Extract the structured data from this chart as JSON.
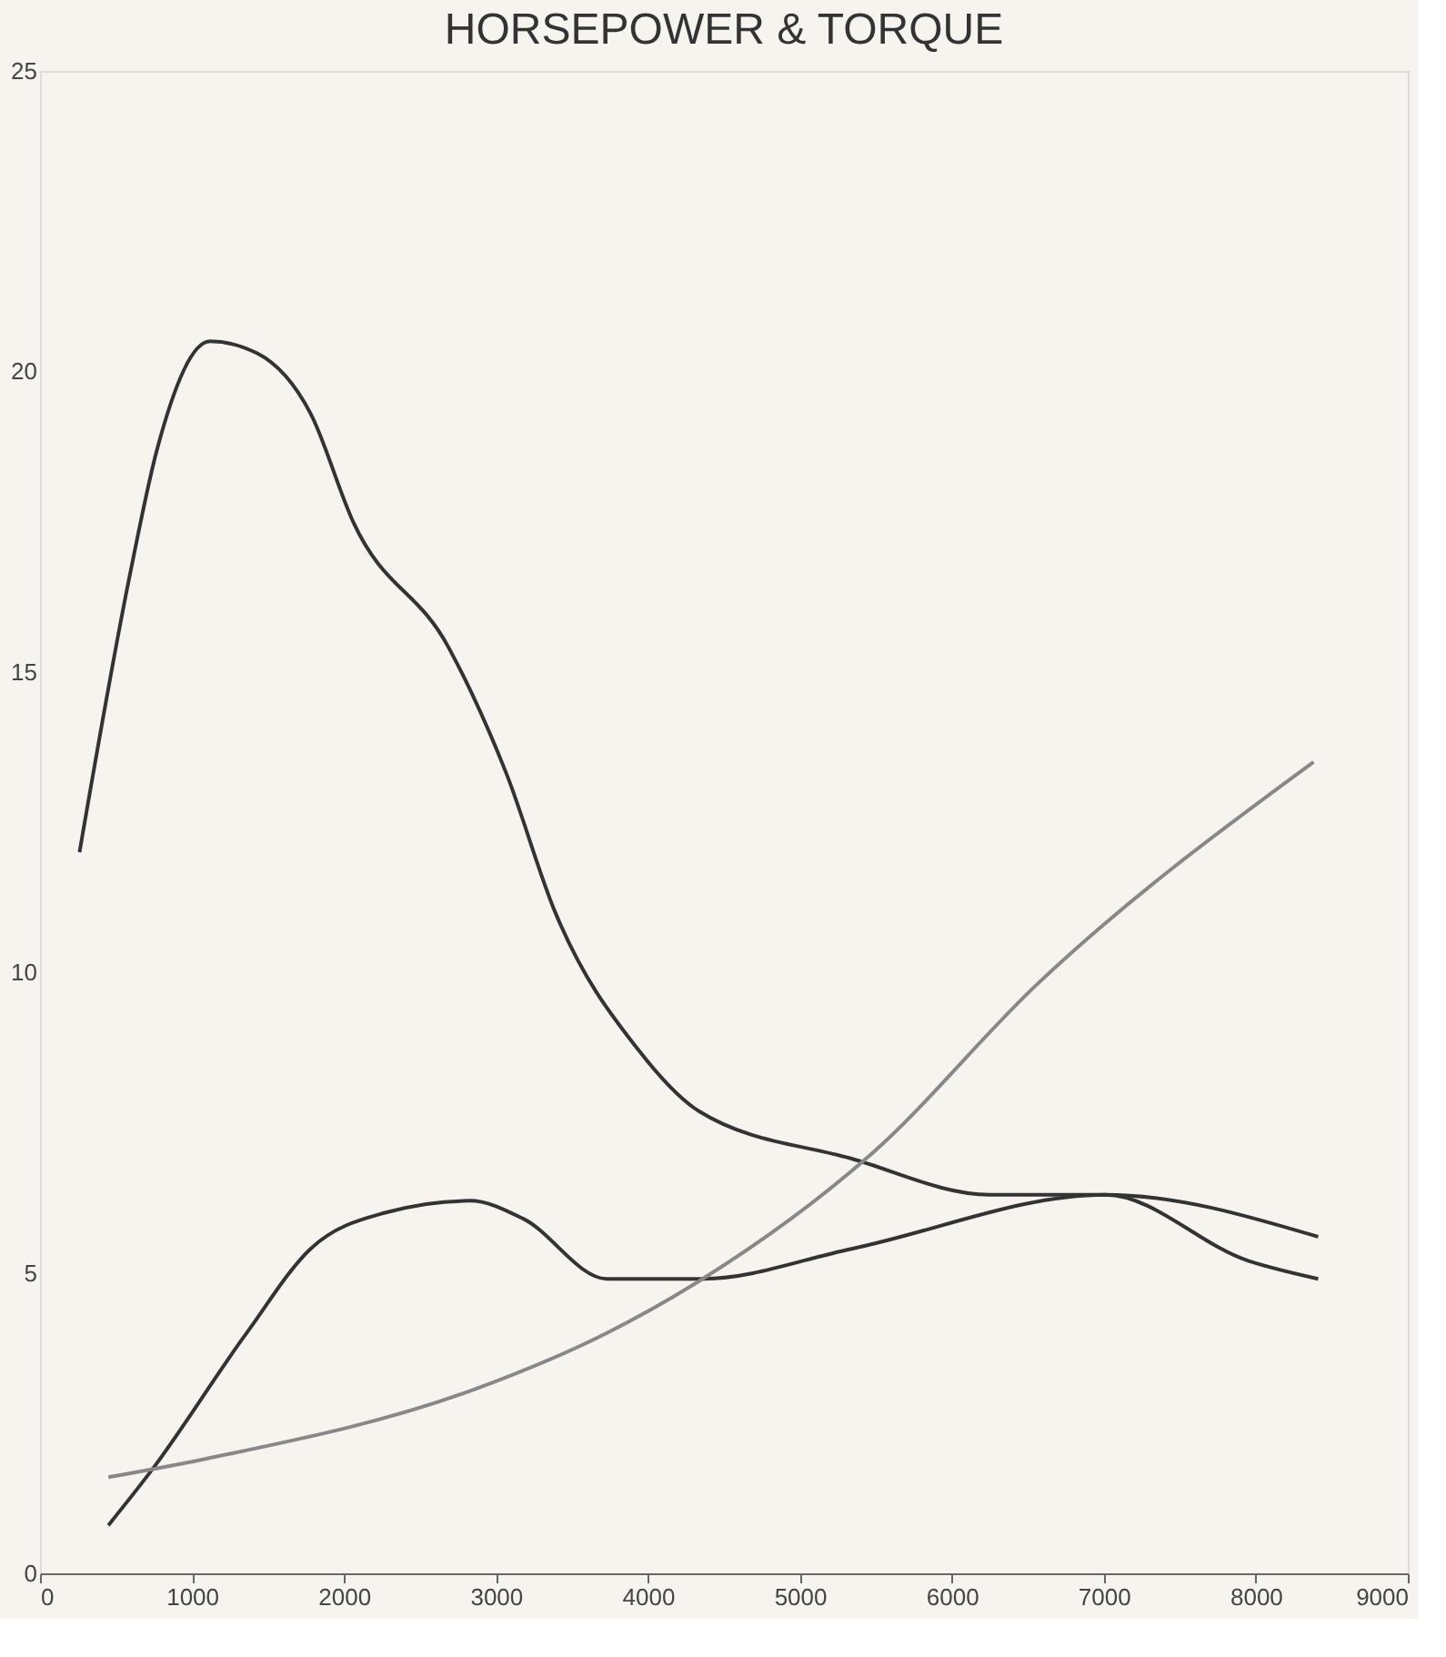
{
  "chart_data": {
    "type": "line",
    "title": "HORSEPOWER & TORQUE",
    "xlim": [
      0,
      9000
    ],
    "xticks": [
      0,
      1000,
      2000,
      3000,
      4000,
      5000,
      6000,
      7000,
      8000,
      9000
    ],
    "ylim": [
      0,
      25
    ],
    "yticks": [
      0,
      5,
      10,
      15,
      20,
      25
    ],
    "grid": false,
    "marker": "none",
    "line_style": "solid",
    "series": [
      {
        "color": "#333333",
        "x": [
          260,
          590,
          770,
          1120,
          1430,
          1780,
          2060,
          2690,
          3070,
          3390,
          3940,
          4330,
          5340,
          6250,
          7010,
          7950,
          8410
        ],
        "values": [
          12.0,
          16.6,
          18.7,
          20.5,
          20.3,
          19.3,
          17.5,
          15.4,
          13.3,
          11.0,
          8.7,
          7.7,
          6.9,
          6.3,
          6.3,
          5.2,
          4.9
        ]
      },
      {
        "color": "#333333",
        "x": [
          450,
          730,
          1360,
          1780,
          2270,
          2830,
          3180,
          3730,
          4360,
          5340,
          7010,
          8410
        ],
        "values": [
          0.8,
          1.7,
          4.0,
          5.4,
          6.0,
          6.2,
          5.9,
          4.9,
          4.9,
          5.4,
          6.3,
          5.6
        ]
      },
      {
        "color": "#888888",
        "x": [
          450,
          1080,
          2900,
          3730,
          4360,
          5480,
          6560,
          8380
        ],
        "values": [
          1.6,
          1.9,
          3.1,
          4.0,
          4.9,
          7.0,
          9.8,
          13.5
        ]
      }
    ]
  }
}
